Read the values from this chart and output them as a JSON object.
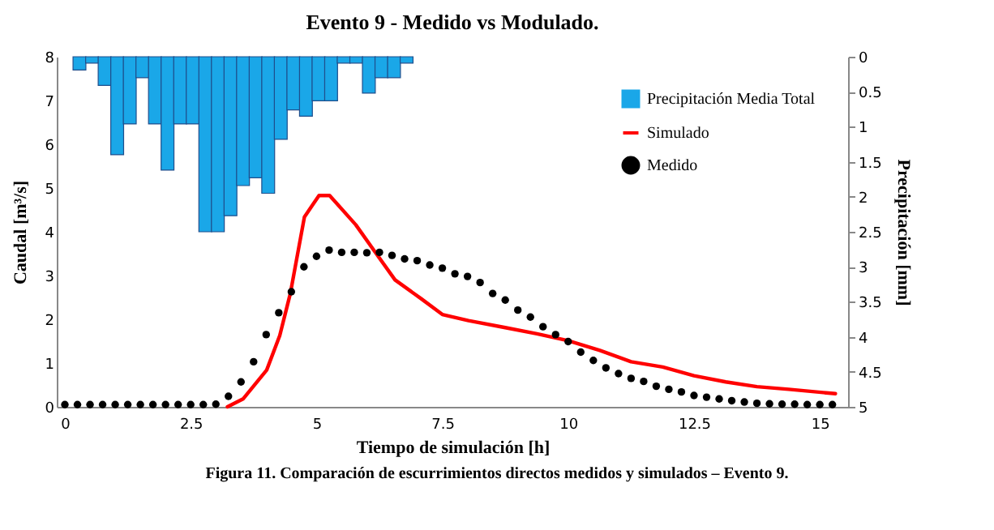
{
  "chart_data": {
    "type": "line",
    "title": "Evento 9 - Medido vs Modulado.",
    "xlabel": "Tiempo de simulación [h]",
    "ylabel": "Caudal [m³/s]",
    "y2label": "Precipitación [mm]",
    "annotations": [
      "Figura 11. Comparación de escurrimientos directos medidos y simulados – Evento 9."
    ],
    "xlim": [
      0,
      15.4
    ],
    "xticks": [
      0,
      2.5,
      5,
      7.5,
      10,
      12.5,
      15
    ],
    "ylim": [
      0,
      8
    ],
    "yticks": [
      0,
      1,
      2,
      3,
      4,
      5,
      6,
      7,
      8
    ],
    "y2lim": [
      5,
      0
    ],
    "y2ticks": [
      0,
      0.5,
      1,
      1.5,
      2,
      2.5,
      3,
      3.5,
      4,
      4.5,
      5
    ],
    "grid": false,
    "legend": "top right",
    "series": [
      {
        "type": "bar",
        "name": "Precipitación Media Total",
        "color": "#1aa7e8",
        "axis": "y2",
        "x": [
          0.29,
          0.54,
          0.79,
          1.04,
          1.29,
          1.54,
          1.79,
          2.04,
          2.29,
          2.54,
          2.79,
          3.04,
          3.29,
          3.54,
          3.79,
          4.04,
          4.29,
          4.54,
          4.79,
          5.04,
          5.29,
          5.54,
          5.79,
          6.04,
          6.29,
          6.54,
          6.79
        ],
        "values": [
          0.19,
          0.09,
          0.41,
          1.4,
          0.96,
          0.3,
          0.96,
          1.62,
          0.96,
          0.96,
          2.5,
          2.5,
          2.27,
          1.84,
          1.73,
          1.95,
          1.18,
          0.76,
          0.85,
          0.63,
          0.63,
          0.09,
          0.09,
          0.52,
          0.3,
          0.3,
          0.09
        ]
      },
      {
        "name": "Simulado",
        "color": "#ff0000",
        "x": [
          3.23,
          3.54,
          4.01,
          4.27,
          4.48,
          4.76,
          5.05,
          5.26,
          5.78,
          6.15,
          6.56,
          7.08,
          7.5,
          8.02,
          8.75,
          9.38,
          10.0,
          10.63,
          11.25,
          11.88,
          12.5,
          13.13,
          13.75,
          14.38,
          15.31
        ],
        "values": [
          0,
          0.18,
          0.84,
          1.63,
          2.59,
          4.34,
          4.83,
          4.83,
          4.16,
          3.56,
          2.9,
          2.47,
          2.11,
          1.97,
          1.81,
          1.67,
          1.51,
          1.29,
          1.03,
          0.91,
          0.71,
          0.57,
          0.46,
          0.4,
          0.3
        ]
      },
      {
        "type": "scatter",
        "name": "Medido",
        "color": "#000000",
        "marker": "circle",
        "x": [
          0,
          0.25,
          0.5,
          0.75,
          1,
          1.25,
          1.5,
          1.75,
          2,
          2.25,
          2.5,
          2.75,
          3,
          3.25,
          3.5,
          3.75,
          4,
          4.25,
          4.5,
          4.75,
          5,
          5.25,
          5.5,
          5.75,
          6,
          6.25,
          6.5,
          6.75,
          7,
          7.25,
          7.5,
          7.75,
          8,
          8.25,
          8.5,
          8.75,
          9,
          9.25,
          9.5,
          9.75,
          10,
          10.25,
          10.5,
          10.75,
          11,
          11.25,
          11.5,
          11.75,
          12,
          12.25,
          12.5,
          12.75,
          13,
          13.25,
          13.5,
          13.75,
          14,
          14.25,
          14.5,
          14.75,
          15,
          15.25
        ],
        "values": [
          0.05,
          0.05,
          0.05,
          0.05,
          0.05,
          0.05,
          0.05,
          0.05,
          0.05,
          0.05,
          0.05,
          0.05,
          0.06,
          0.24,
          0.57,
          1.03,
          1.65,
          2.15,
          2.63,
          3.2,
          3.44,
          3.58,
          3.53,
          3.53,
          3.52,
          3.53,
          3.46,
          3.38,
          3.34,
          3.24,
          3.17,
          3.04,
          2.98,
          2.84,
          2.59,
          2.44,
          2.21,
          2.05,
          1.83,
          1.65,
          1.49,
          1.25,
          1.06,
          0.89,
          0.76,
          0.65,
          0.58,
          0.47,
          0.4,
          0.34,
          0.26,
          0.22,
          0.18,
          0.14,
          0.11,
          0.08,
          0.07,
          0.06,
          0.06,
          0.05,
          0.05,
          0.05
        ]
      }
    ]
  }
}
